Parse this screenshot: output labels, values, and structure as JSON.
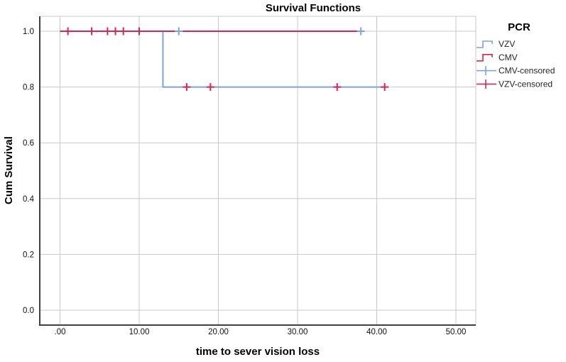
{
  "chart_data": {
    "type": "line",
    "subtype": "kaplan_meier_step",
    "title": "Survival Functions",
    "xlabel": "time to sever vision loss",
    "ylabel": "Cum Survival",
    "grid": true,
    "x_ticks": {
      "values": [
        0,
        10,
        20,
        30,
        40,
        50
      ],
      "labels": [
        ".00",
        "10.00",
        "20.00",
        "30.00",
        "40.00",
        "50.00"
      ]
    },
    "y_ticks": {
      "values": [
        0.0,
        0.2,
        0.4,
        0.6,
        0.8,
        1.0
      ],
      "labels": [
        "0.0",
        "0.2",
        "0.4",
        "0.6",
        "0.8",
        "1.0"
      ]
    },
    "xlim": [
      0,
      50
    ],
    "ylim": [
      0,
      1
    ],
    "series": [
      {
        "name": "VZV",
        "color": "#7CA4DB",
        "steps": [
          [
            0,
            1.0
          ],
          [
            13,
            1.0
          ],
          [
            13,
            0.8
          ],
          [
            41,
            0.8
          ]
        ]
      },
      {
        "name": "CMV",
        "color": "#DC2450",
        "steps": [
          [
            0,
            1.0
          ],
          [
            38,
            1.0
          ]
        ]
      }
    ],
    "censored": [
      {
        "name": "VZV-censored",
        "color": "#DC2450",
        "points": [
          [
            1,
            1.0
          ],
          [
            4,
            1.0
          ],
          [
            6,
            1.0
          ],
          [
            7,
            1.0
          ],
          [
            8,
            1.0
          ],
          [
            10,
            1.0
          ],
          [
            16,
            0.8
          ],
          [
            19,
            0.8
          ],
          [
            35,
            0.8
          ],
          [
            41,
            0.8
          ]
        ]
      },
      {
        "name": "CMV-censored",
        "color": "#7CA4DB",
        "points": [
          [
            15,
            1.0
          ],
          [
            38,
            1.0
          ]
        ]
      }
    ],
    "legend": {
      "title": "PCR",
      "position": "right",
      "entries": [
        {
          "label": "VZV",
          "glyph": "step-line",
          "color": "#7CA4DB"
        },
        {
          "label": "CMV",
          "glyph": "step-line",
          "color": "#DC2450"
        },
        {
          "label": "CMV-censored",
          "glyph": "plus",
          "color": "#7CA4DB"
        },
        {
          "label": "VZV-censored",
          "glyph": "plus",
          "color": "#DC2450"
        }
      ]
    },
    "colors": {
      "grid": "#C9C9C9",
      "axis": "#414141",
      "frame_light": "#C9C9C9",
      "text": "#111111",
      "background": "#FFFFFF"
    }
  }
}
